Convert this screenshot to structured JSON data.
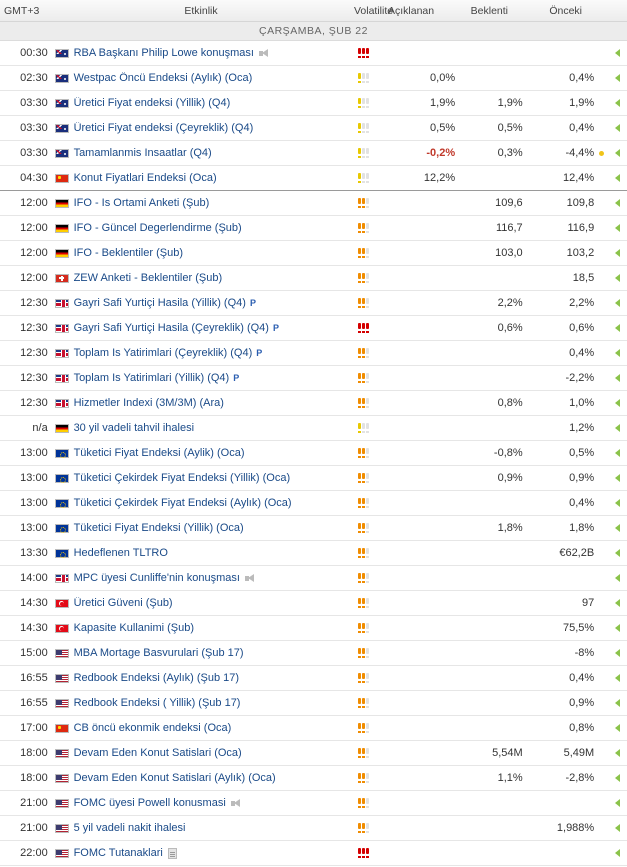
{
  "header": {
    "tz": "GMT+3",
    "event": "Etkinlik",
    "vol": "Volatilite",
    "actual": "Açıklanan",
    "expected": "Beklenti",
    "previous": "Önceki"
  },
  "date": "ÇARŞAMBA, ŞUB 22",
  "colors": {
    "negative": "#c0392b",
    "link": "#1a4a88",
    "arrow": "#8bc34a"
  },
  "rows": [
    {
      "time": "00:30",
      "flag": "au",
      "event": "RBA Başkanı Philip Lowe konuşması",
      "vol": 3,
      "extra": "speaker-icon",
      "actual": "",
      "expected": "",
      "previous": "",
      "dot": false,
      "arrow": true
    },
    {
      "time": "02:30",
      "flag": "au",
      "event": "Westpac Öncü Endeksi (Aylık) (Oca)",
      "vol": 1,
      "extra": "",
      "actual": "0,0%",
      "expected": "",
      "previous": "0,4%",
      "dot": false,
      "arrow": true
    },
    {
      "time": "03:30",
      "flag": "au",
      "event": "Üretici Fiyat endeksi (Yillik) (Q4)",
      "vol": 1,
      "extra": "",
      "actual": "1,9%",
      "expected": "1,9%",
      "previous": "1,9%",
      "dot": false,
      "arrow": true
    },
    {
      "time": "03:30",
      "flag": "au",
      "event": "Üretici Fiyat endeksi (Çeyreklik) (Q4)",
      "vol": 1,
      "extra": "",
      "actual": "0,5%",
      "expected": "0,5%",
      "previous": "0,4%",
      "dot": false,
      "arrow": true
    },
    {
      "time": "03:30",
      "flag": "au",
      "event": "Tamamlanmis Insaatlar (Q4)",
      "vol": 1,
      "extra": "",
      "actual": "-0,2%",
      "actual_neg": true,
      "expected": "0,3%",
      "previous": "-4,4%",
      "dot": true,
      "arrow": true
    },
    {
      "time": "04:30",
      "flag": "cn",
      "event": "Konut Fiyatlari Endeksi (Oca)",
      "vol": 1,
      "extra": "",
      "actual": "12,2%",
      "expected": "",
      "previous": "12,4%",
      "dot": false,
      "arrow": true,
      "sep": true
    },
    {
      "time": "12:00",
      "flag": "de",
      "event": "IFO - Is Ortami Anketi (Şub)",
      "vol": 2,
      "extra": "",
      "actual": "",
      "expected": "109,6",
      "previous": "109,8",
      "dot": false,
      "arrow": true
    },
    {
      "time": "12:00",
      "flag": "de",
      "event": "IFO - Güncel Degerlendirme (Şub)",
      "vol": 2,
      "extra": "",
      "actual": "",
      "expected": "116,7",
      "previous": "116,9",
      "dot": false,
      "arrow": true
    },
    {
      "time": "12:00",
      "flag": "de",
      "event": "IFO - Beklentiler (Şub)",
      "vol": 2,
      "extra": "",
      "actual": "",
      "expected": "103,0",
      "previous": "103,2",
      "dot": false,
      "arrow": true
    },
    {
      "time": "12:00",
      "flag": "ch",
      "event": "ZEW Anketi - Beklentiler (Şub)",
      "vol": 2,
      "extra": "",
      "actual": "",
      "expected": "",
      "previous": "18,5",
      "dot": false,
      "arrow": true
    },
    {
      "time": "12:30",
      "flag": "uk",
      "event": "Gayri Safi Yurtiçi Hasila (Yillik) (Q4)",
      "vol": 2,
      "extra": "prelim",
      "actual": "",
      "expected": "2,2%",
      "previous": "2,2%",
      "dot": false,
      "arrow": true
    },
    {
      "time": "12:30",
      "flag": "uk",
      "event": "Gayri Safi Yurtiçi Hasila (Çeyreklik) (Q4)",
      "vol": 3,
      "extra": "prelim",
      "actual": "",
      "expected": "0,6%",
      "previous": "0,6%",
      "dot": false,
      "arrow": true
    },
    {
      "time": "12:30",
      "flag": "uk",
      "event": "Toplam Is Yatirimlari (Çeyreklik) (Q4)",
      "vol": 2,
      "extra": "prelim",
      "actual": "",
      "expected": "",
      "previous": "0,4%",
      "dot": false,
      "arrow": true
    },
    {
      "time": "12:30",
      "flag": "uk",
      "event": "Toplam Is Yatirimlari (Yillik) (Q4)",
      "vol": 2,
      "extra": "prelim",
      "actual": "",
      "expected": "",
      "previous": "-2,2%",
      "dot": false,
      "arrow": true
    },
    {
      "time": "12:30",
      "flag": "uk",
      "event": "Hizmetler Indexi (3M/3M) (Ara)",
      "vol": 2,
      "extra": "",
      "actual": "",
      "expected": "0,8%",
      "previous": "1,0%",
      "dot": false,
      "arrow": true
    },
    {
      "time": "n/a",
      "flag": "de",
      "event": "30 yil vadeli tahvil ihalesi",
      "vol": 1,
      "extra": "",
      "actual": "",
      "expected": "",
      "previous": "1,2%",
      "dot": false,
      "arrow": true
    },
    {
      "time": "13:00",
      "flag": "eu",
      "event": "Tüketici Fiyat Endeksi (Aylik) (Oca)",
      "vol": 2,
      "extra": "",
      "actual": "",
      "expected": "-0,8%",
      "previous": "0,5%",
      "dot": false,
      "arrow": true
    },
    {
      "time": "13:00",
      "flag": "eu",
      "event": "Tüketici Çekirdek Fiyat Endeksi (Yillik) (Oca)",
      "vol": 2,
      "extra": "",
      "actual": "",
      "expected": "0,9%",
      "previous": "0,9%",
      "dot": false,
      "arrow": true
    },
    {
      "time": "13:00",
      "flag": "eu",
      "event": "Tüketici Çekirdek Fiyat Endeksi (Aylık) (Oca)",
      "vol": 2,
      "extra": "",
      "actual": "",
      "expected": "",
      "previous": "0,4%",
      "dot": false,
      "arrow": true
    },
    {
      "time": "13:00",
      "flag": "eu",
      "event": "Tüketici Fiyat Endeksi (Yillik) (Oca)",
      "vol": 2,
      "extra": "",
      "actual": "",
      "expected": "1,8%",
      "previous": "1,8%",
      "dot": false,
      "arrow": true
    },
    {
      "time": "13:30",
      "flag": "eu",
      "event": "Hedeflenen TLTRO",
      "vol": 2,
      "extra": "",
      "actual": "",
      "expected": "",
      "previous": "€62,2B",
      "dot": false,
      "arrow": true
    },
    {
      "time": "14:00",
      "flag": "uk",
      "event": "MPC üyesi Cunliffe'nin konuşması",
      "vol": 2,
      "extra": "speaker-icon",
      "actual": "",
      "expected": "",
      "previous": "",
      "dot": false,
      "arrow": true
    },
    {
      "time": "14:30",
      "flag": "tr",
      "event": "Üretici Güveni (Şub)",
      "vol": 2,
      "extra": "",
      "actual": "",
      "expected": "",
      "previous": "97",
      "dot": false,
      "arrow": true
    },
    {
      "time": "14:30",
      "flag": "tr",
      "event": "Kapasite Kullanimi (Şub)",
      "vol": 2,
      "extra": "",
      "actual": "",
      "expected": "",
      "previous": "75,5%",
      "dot": false,
      "arrow": true
    },
    {
      "time": "15:00",
      "flag": "us",
      "event": "MBA Mortage Basvurulari (Şub 17)",
      "vol": 2,
      "extra": "",
      "actual": "",
      "expected": "",
      "previous": "-8%",
      "dot": false,
      "arrow": true
    },
    {
      "time": "16:55",
      "flag": "us",
      "event": "Redbook Endeksi (Aylık) (Şub 17)",
      "vol": 2,
      "extra": "",
      "actual": "",
      "expected": "",
      "previous": "0,4%",
      "dot": false,
      "arrow": true
    },
    {
      "time": "16:55",
      "flag": "us",
      "event": "Redbook Endeksi ( Yillik) (Şub 17)",
      "vol": 2,
      "extra": "",
      "actual": "",
      "expected": "",
      "previous": "0,9%",
      "dot": false,
      "arrow": true
    },
    {
      "time": "17:00",
      "flag": "cn",
      "event": "CB öncü ekonmik endeksi (Oca)",
      "vol": 2,
      "extra": "",
      "actual": "",
      "expected": "",
      "previous": "0,8%",
      "dot": false,
      "arrow": true
    },
    {
      "time": "18:00",
      "flag": "us",
      "event": "Devam Eden Konut Satislari (Oca)",
      "vol": 2,
      "extra": "",
      "actual": "",
      "expected": "5,54M",
      "previous": "5,49M",
      "dot": false,
      "arrow": true
    },
    {
      "time": "18:00",
      "flag": "us",
      "event": "Devam Eden Konut Satislari (Aylık) (Oca)",
      "vol": 2,
      "extra": "",
      "actual": "",
      "expected": "1,1%",
      "previous": "-2,8%",
      "dot": false,
      "arrow": true
    },
    {
      "time": "21:00",
      "flag": "us",
      "event": "FOMC üyesi Powell konusmasi",
      "vol": 2,
      "extra": "speaker-icon",
      "actual": "",
      "expected": "",
      "previous": "",
      "dot": false,
      "arrow": true
    },
    {
      "time": "21:00",
      "flag": "us",
      "event": "5 yil vadeli nakit ihalesi",
      "vol": 2,
      "extra": "",
      "actual": "",
      "expected": "",
      "previous": "1,988%",
      "dot": false,
      "arrow": true
    },
    {
      "time": "22:00",
      "flag": "us",
      "event": "FOMC Tutanaklari",
      "vol": 3,
      "extra": "document-icon",
      "actual": "",
      "expected": "",
      "previous": "",
      "dot": false,
      "arrow": true
    }
  ],
  "prelim_mark": "P"
}
